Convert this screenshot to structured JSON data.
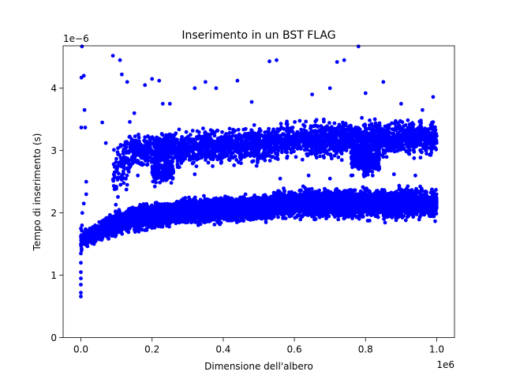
{
  "chart_data": {
    "type": "scatter",
    "title": "Inserimento in un BST FLAG",
    "xlabel": "Dimensione dell'albero",
    "ylabel": "Tempo di inserimento (s)",
    "x_offset_text": "1e6",
    "y_offset_text": "1e−6",
    "xlim": [
      -50000,
      1050000
    ],
    "ylim": [
      0,
      4.68
    ],
    "x_ticks": [
      0,
      200000,
      400000,
      600000,
      800000,
      1000000
    ],
    "x_tick_labels": [
      "0.0",
      "0.2",
      "0.4",
      "0.6",
      "0.8",
      "1.0"
    ],
    "y_ticks": [
      0,
      1,
      2,
      3,
      4
    ],
    "y_tick_labels": [
      "0",
      "1",
      "2",
      "3",
      "4"
    ],
    "grid": false,
    "legend": "none",
    "marker_color": "#0000ff",
    "series": [
      {
        "points": [
          [
            0,
            0.66
          ],
          [
            0,
            0.72
          ],
          [
            0,
            0.85
          ],
          [
            0,
            0.95
          ],
          [
            0,
            1.05
          ],
          [
            0,
            1.2
          ],
          [
            0,
            1.35
          ],
          [
            0,
            1.5
          ],
          [
            0,
            1.62
          ],
          [
            0,
            1.75
          ],
          [
            2000,
            1.4
          ],
          [
            3000,
            1.8
          ],
          [
            4000,
            2.0
          ],
          [
            5000,
            1.55
          ],
          [
            8000,
            2.15
          ],
          [
            12000,
            1.65
          ],
          [
            15000,
            2.3
          ],
          [
            20000,
            1.7
          ],
          [
            1000,
            3.37
          ],
          [
            1500,
            4.17
          ],
          [
            3000,
            4.67
          ],
          [
            8000,
            4.2
          ],
          [
            10000,
            3.65
          ],
          [
            12000,
            3.37
          ],
          [
            15000,
            2.5
          ],
          [
            25000,
            1.75
          ],
          [
            40000,
            1.8
          ],
          [
            55000,
            1.85
          ],
          [
            60000,
            3.45
          ],
          [
            70000,
            3.12
          ],
          [
            80000,
            1.85
          ],
          [
            90000,
            4.52
          ],
          [
            100000,
            1.9
          ],
          [
            110000,
            4.45
          ],
          [
            115000,
            4.22
          ],
          [
            120000,
            1.95
          ],
          [
            130000,
            4.1
          ],
          [
            150000,
            3.6
          ],
          [
            180000,
            4.05
          ],
          [
            200000,
            4.15
          ],
          [
            220000,
            4.12
          ],
          [
            230000,
            3.75
          ],
          [
            250000,
            3.75
          ],
          [
            320000,
            4.0
          ],
          [
            350000,
            4.1
          ],
          [
            380000,
            4.0
          ],
          [
            440000,
            4.12
          ],
          [
            480000,
            3.78
          ],
          [
            530000,
            4.43
          ],
          [
            550000,
            4.45
          ],
          [
            650000,
            3.9
          ],
          [
            700000,
            4.0
          ],
          [
            720000,
            4.42
          ],
          [
            740000,
            4.45
          ],
          [
            780000,
            4.67
          ],
          [
            800000,
            3.92
          ],
          [
            850000,
            4.1
          ],
          [
            900000,
            3.75
          ],
          [
            960000,
            3.65
          ],
          [
            990000,
            3.86
          ],
          [
            130000,
            2.45
          ],
          [
            160000,
            2.6
          ],
          [
            210000,
            2.55
          ],
          [
            230000,
            2.62
          ],
          [
            250000,
            2.65
          ],
          [
            320000,
            2.62
          ],
          [
            560000,
            2.55
          ],
          [
            640000,
            2.6
          ],
          [
            700000,
            2.55
          ],
          [
            760000,
            2.6
          ],
          [
            820000,
            2.6
          ],
          [
            880000,
            2.62
          ],
          [
            940000,
            2.6
          ],
          [
            520000,
            1.85
          ],
          [
            300000,
            1.85
          ],
          [
            420000,
            1.88
          ],
          [
            660000,
            1.9
          ],
          [
            900000,
            1.95
          ],
          [
            980000,
            1.95
          ]
        ]
      }
    ],
    "clusters": [
      {
        "x_range": [
          0,
          60000
        ],
        "y_center_start": 1.55,
        "y_center_end": 1.72,
        "y_spread": 0.14,
        "count": 300
      },
      {
        "x_range": [
          60000,
          140000
        ],
        "y_center_start": 1.75,
        "y_center_end": 1.9,
        "y_spread": 0.15,
        "count": 700
      },
      {
        "x_range": [
          140000,
          260000
        ],
        "y_center_start": 1.9,
        "y_center_end": 2.0,
        "y_spread": 0.15,
        "count": 1200
      },
      {
        "x_range": [
          260000,
          540000
        ],
        "y_center_start": 2.02,
        "y_center_end": 2.08,
        "y_spread": 0.16,
        "count": 2400
      },
      {
        "x_range": [
          540000,
          1000000
        ],
        "y_center_start": 2.15,
        "y_center_end": 2.15,
        "y_spread": 0.19,
        "count": 3400
      },
      {
        "x_range": [
          90000,
          140000
        ],
        "y_center_start": 2.6,
        "y_center_end": 3.0,
        "y_spread": 0.42,
        "count": 110
      },
      {
        "x_range": [
          140000,
          540000
        ],
        "y_center_start": 3.0,
        "y_center_end": 3.1,
        "y_spread": 0.24,
        "count": 1300
      },
      {
        "x_range": [
          540000,
          1000000
        ],
        "y_center_start": 3.15,
        "y_center_end": 3.2,
        "y_spread": 0.24,
        "count": 1500
      },
      {
        "x_range": [
          760000,
          840000
        ],
        "y_center_start": 2.85,
        "y_center_end": 2.85,
        "y_spread": 0.2,
        "count": 260
      },
      {
        "x_range": [
          200000,
          260000
        ],
        "y_center_start": 2.7,
        "y_center_end": 2.7,
        "y_spread": 0.2,
        "count": 140
      }
    ]
  }
}
